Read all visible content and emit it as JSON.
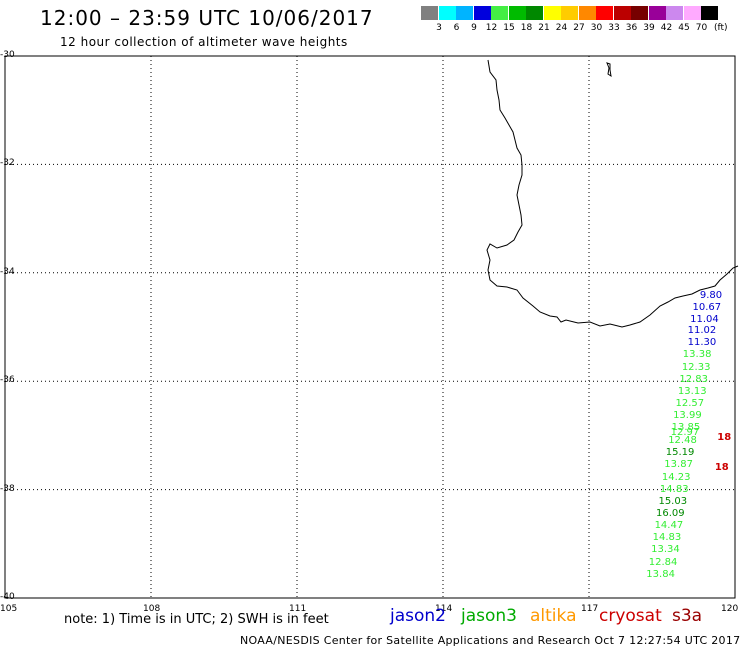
{
  "title": "12:00 – 23:59 UTC 10/06/2017",
  "subtitle": "12 hour collection of altimeter wave heights",
  "colorbar": {
    "unit": "(ft)",
    "swatches": [
      {
        "label": "3",
        "color": "#808080"
      },
      {
        "label": "6",
        "color": "#00ffff"
      },
      {
        "label": "9",
        "color": "#00b4ff"
      },
      {
        "label": "12",
        "color": "#0000dd"
      },
      {
        "label": "15",
        "color": "#44ee44"
      },
      {
        "label": "18",
        "color": "#00bb00"
      },
      {
        "label": "21",
        "color": "#008800"
      },
      {
        "label": "24",
        "color": "#ffff00"
      },
      {
        "label": "27",
        "color": "#ffcc00"
      },
      {
        "label": "30",
        "color": "#ff8800"
      },
      {
        "label": "33",
        "color": "#ff0000"
      },
      {
        "label": "36",
        "color": "#bb0000"
      },
      {
        "label": "39",
        "color": "#770000"
      },
      {
        "label": "42",
        "color": "#990099"
      },
      {
        "label": "45",
        "color": "#cc88ee"
      },
      {
        "label": "70",
        "color": "#ffaaff"
      },
      {
        "label": "",
        "color": "#000000"
      }
    ]
  },
  "axes": {
    "lon": [
      105,
      108,
      111,
      114,
      117,
      120
    ],
    "lat": [
      -30,
      -32,
      -34,
      -36,
      -38,
      -40
    ]
  },
  "points": [
    {
      "label": "9.80",
      "lon": 119.75,
      "lat": -34.42,
      "color": "#0000cc"
    },
    {
      "label": "10.67",
      "lon": 119.6,
      "lat": -34.65,
      "color": "#0000cc"
    },
    {
      "label": "11.04",
      "lon": 119.55,
      "lat": -34.87,
      "color": "#0000cc"
    },
    {
      "label": "11.02",
      "lon": 119.5,
      "lat": -35.08,
      "color": "#0000cc"
    },
    {
      "label": "11.30",
      "lon": 119.5,
      "lat": -35.3,
      "color": "#0000cc"
    },
    {
      "label": "13.38",
      "lon": 119.4,
      "lat": -35.52,
      "color": "#33ee33"
    },
    {
      "label": "12.33",
      "lon": 119.38,
      "lat": -35.75,
      "color": "#33ee33"
    },
    {
      "label": "12.83",
      "lon": 119.33,
      "lat": -35.97,
      "color": "#33ee33"
    },
    {
      "label": "13.13",
      "lon": 119.3,
      "lat": -36.2,
      "color": "#33ee33"
    },
    {
      "label": "12.57",
      "lon": 119.25,
      "lat": -36.42,
      "color": "#33ee33"
    },
    {
      "label": "13.99",
      "lon": 119.2,
      "lat": -36.65,
      "color": "#33ee33"
    },
    {
      "label": "13.85",
      "lon": 119.17,
      "lat": -36.87,
      "color": "#33ee33"
    },
    {
      "label": "12.97",
      "lon": 119.15,
      "lat": -36.95,
      "color": "#33ee33"
    },
    {
      "label": "12.48",
      "lon": 119.1,
      "lat": -37.1,
      "color": "#33ee33"
    },
    {
      "label": "15.19",
      "lon": 119.05,
      "lat": -37.33,
      "color": "#008800"
    },
    {
      "label": "13.87",
      "lon": 119.02,
      "lat": -37.55,
      "color": "#33ee33"
    },
    {
      "label": "14.23",
      "lon": 118.97,
      "lat": -37.78,
      "color": "#33ee33"
    },
    {
      "label": "14.83",
      "lon": 118.93,
      "lat": -38.0,
      "color": "#33ee33"
    },
    {
      "label": "15.03",
      "lon": 118.9,
      "lat": -38.22,
      "color": "#008800"
    },
    {
      "label": "16.09",
      "lon": 118.85,
      "lat": -38.45,
      "color": "#008800"
    },
    {
      "label": "14.47",
      "lon": 118.82,
      "lat": -38.67,
      "color": "#33ee33"
    },
    {
      "label": "14.83",
      "lon": 118.78,
      "lat": -38.9,
      "color": "#33ee33"
    },
    {
      "label": "13.34",
      "lon": 118.75,
      "lat": -39.12,
      "color": "#33ee33"
    },
    {
      "label": "12.84",
      "lon": 118.7,
      "lat": -39.35,
      "color": "#33ee33"
    },
    {
      "label": "13.84",
      "lon": 118.65,
      "lat": -39.57,
      "color": "#33ee33"
    },
    {
      "label": "18",
      "lon": 119.8,
      "lat": -37.05,
      "color": "#cc0000"
    },
    {
      "label": "18",
      "lon": 119.75,
      "lat": -37.6,
      "color": "#cc0000"
    }
  ],
  "note": "note: 1) Time is in UTC; 2) SWH is in feet",
  "satellites": [
    {
      "name": "jason2",
      "color": "#0000cc"
    },
    {
      "name": "jason3",
      "color": "#00aa00"
    },
    {
      "name": "altika",
      "color": "#ff9900"
    },
    {
      "name": "cryosat",
      "color": "#cc0000"
    },
    {
      "name": "s3a",
      "color": "#990000"
    }
  ],
  "footer": "NOAA/NESDIS Center for Satellite Applications and Research    Oct  7 12:27:54 UTC 2017"
}
